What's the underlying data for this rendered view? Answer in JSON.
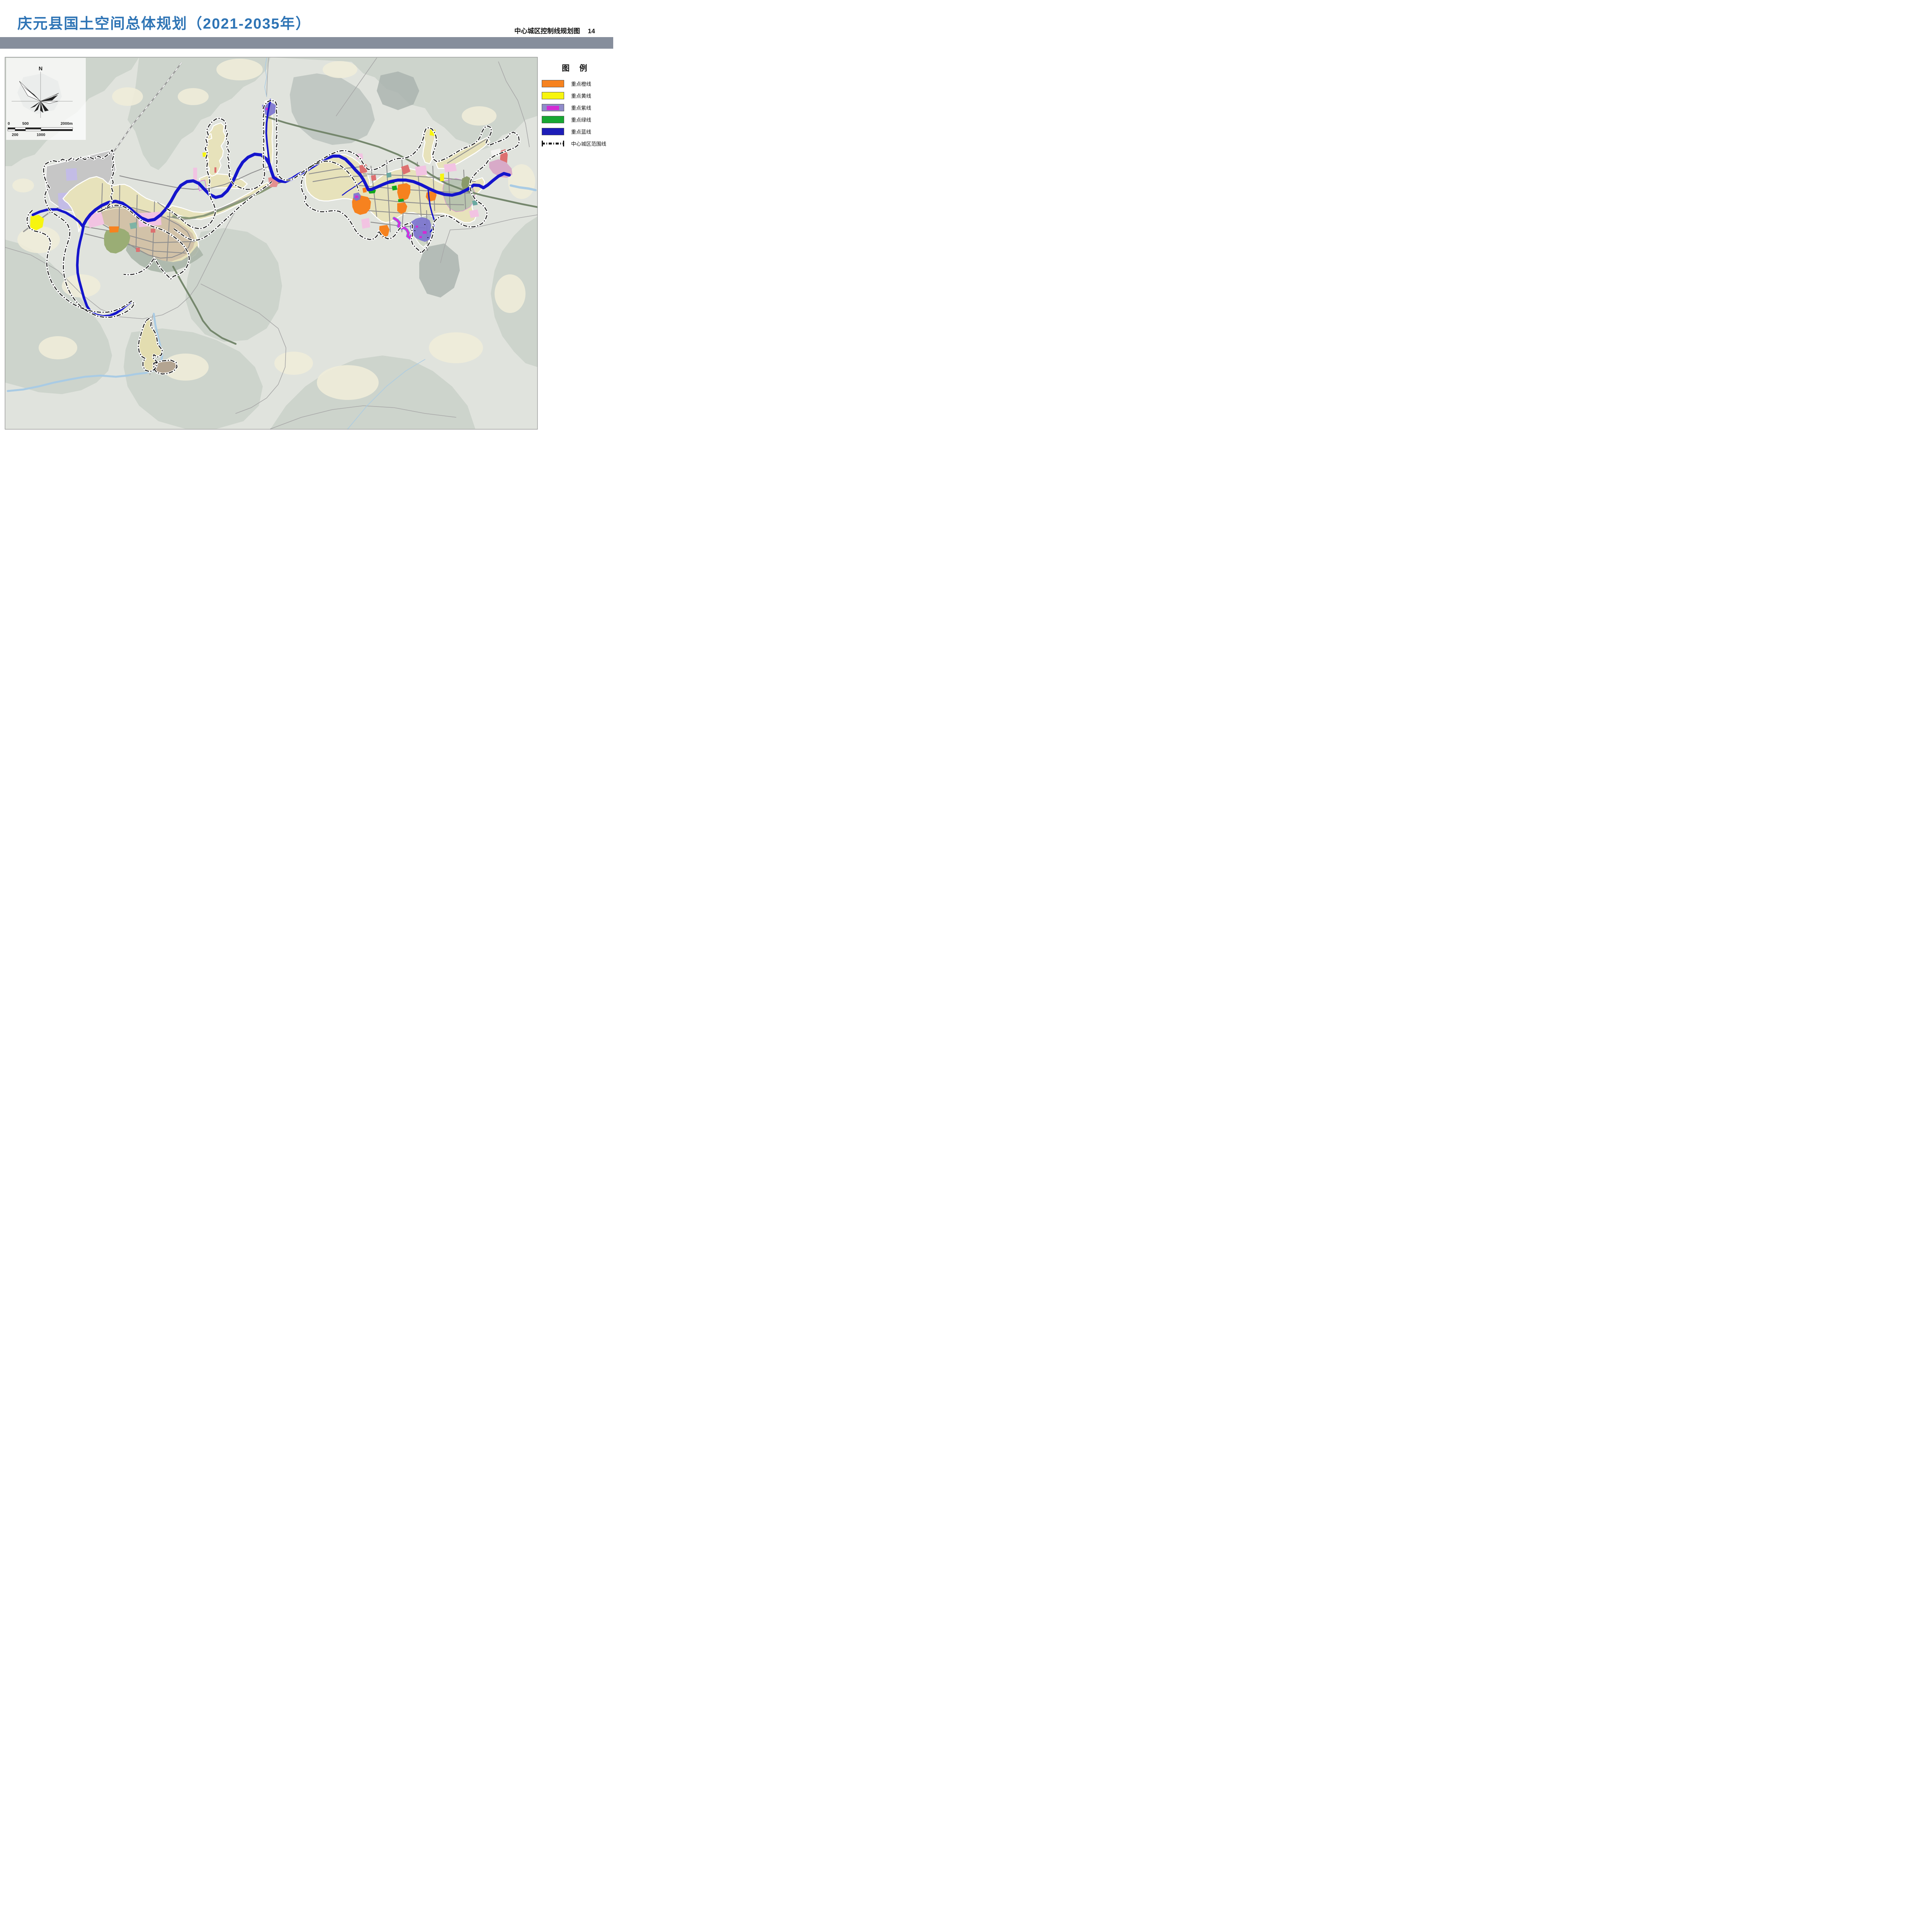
{
  "header": {
    "title": "庆元县国土空间总体规划（2021-2035年）",
    "subtitle": "中心城区控制线规划图",
    "page_number": "14",
    "title_color": "#2e74b5",
    "band_color": "#868e9c"
  },
  "legend": {
    "title": "图 例",
    "items": [
      {
        "label": "重点橙线",
        "type": "fill",
        "color": "#F6821F"
      },
      {
        "label": "重点黄线",
        "type": "fill",
        "color": "#F7F50F"
      },
      {
        "label": "重点紫线",
        "type": "fill-inner",
        "color": "#8F8BC9",
        "inner_color": "#D32BD3"
      },
      {
        "label": "重点绿线",
        "type": "fill",
        "color": "#17A733"
      },
      {
        "label": "重点蓝线",
        "type": "fill",
        "color": "#1D1DB8"
      },
      {
        "label": "中心城区范围线",
        "type": "dashdot",
        "color": "#111111"
      }
    ]
  },
  "compass": {
    "north_label": "N"
  },
  "scale_bar": {
    "top_labels": [
      "0",
      "500",
      "2000m"
    ],
    "bottom_labels": [
      "200",
      "1000"
    ]
  },
  "map_colors": {
    "blue_line": "#1414cc",
    "boundary_line": "#141414",
    "terrain_base": "#e0e3dd",
    "urban_fill": "#e7e2bb",
    "urban_dense_fill": "#d2c2a8",
    "natural_stream": "#a9cbe4",
    "magenta_line": "#dd22dd"
  }
}
